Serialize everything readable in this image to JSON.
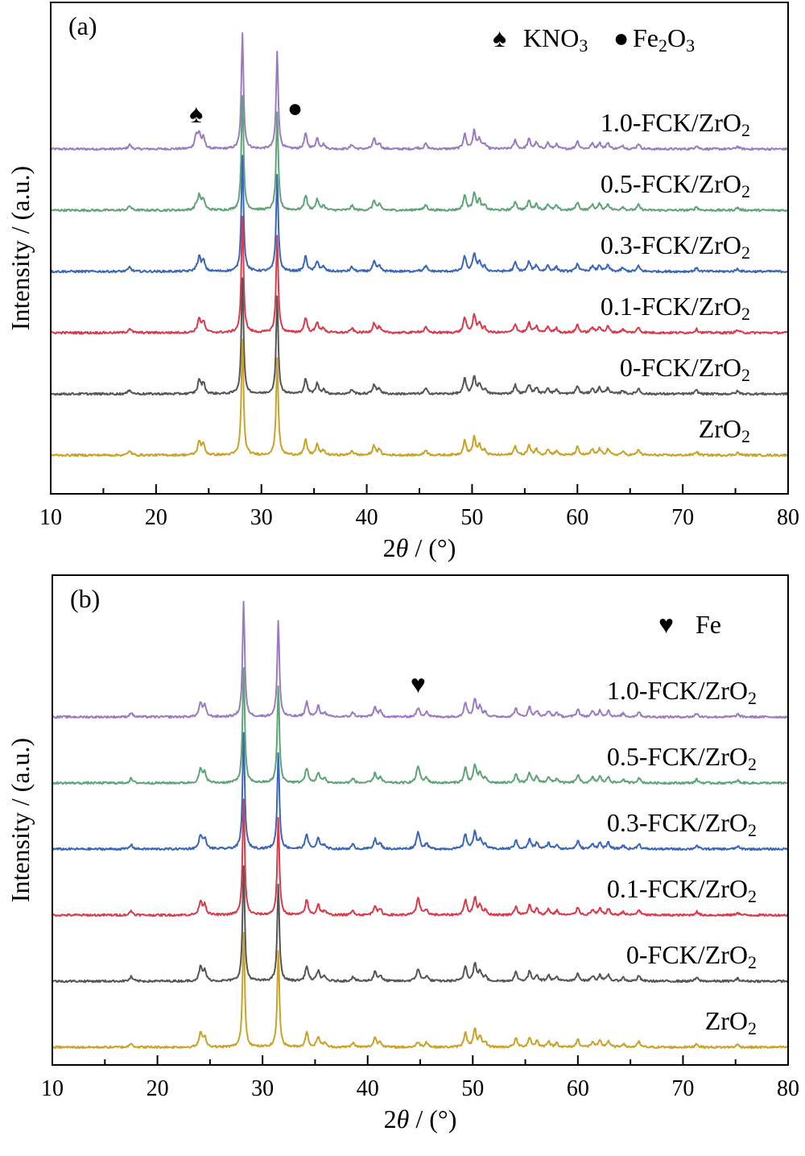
{
  "chart_data": [
    {
      "type": "line",
      "panel_label": "(a)",
      "xlabel_prefix": "2",
      "xlabel_var": "θ",
      "xlabel_suffix": " / (°)",
      "ylabel": "Intensity / (a.u.)",
      "xlim": [
        10,
        80
      ],
      "xticks": [
        10,
        20,
        30,
        40,
        50,
        60,
        70,
        80
      ],
      "grid": false,
      "legend": [
        {
          "symbol": "♠",
          "name": "KNO",
          "sub": "3",
          "position": "top-right"
        },
        {
          "symbol": "●",
          "name": "Fe",
          "sub": "2",
          "tail": "O",
          "sub2": "3",
          "position": "top-right"
        }
      ],
      "markers": [
        {
          "symbol": "♠",
          "x": 23.8,
          "series": "1.0-FCK/ZrO2"
        },
        {
          "symbol": "●",
          "x": 33.2,
          "series": "1.0-FCK/ZrO2"
        }
      ],
      "series": [
        {
          "name": "1.0-FCK/ZrO2",
          "label_main": "1.0-FCK/ZrO",
          "label_sub": "2",
          "color": "#9b7bc0",
          "offset": 5,
          "fe_peak": 0.05,
          "kno3_peak": 0.6,
          "height": 1.0
        },
        {
          "name": "0.5-FCK/ZrO2",
          "label_main": "0.5-FCK/ZrO",
          "label_sub": "2",
          "color": "#5fa477",
          "offset": 4,
          "fe_peak": 0.05,
          "kno3_peak": 0.2,
          "height": 1.0
        },
        {
          "name": "0.3-FCK/ZrO2",
          "label_main": "0.3-FCK/ZrO",
          "label_sub": "2",
          "color": "#3a66b8",
          "offset": 3,
          "fe_peak": 0.05,
          "kno3_peak": 0.1,
          "height": 1.0
        },
        {
          "name": "0.1-FCK/ZrO2",
          "label_main": "0.1-FCK/ZrO",
          "label_sub": "2",
          "color": "#d93a4a",
          "offset": 2,
          "fe_peak": 0.05,
          "kno3_peak": 0.05,
          "height": 1.0
        },
        {
          "name": "0-FCK/ZrO2",
          "label_main": "0-FCK/ZrO",
          "label_sub": "2",
          "color": "#555555",
          "offset": 1,
          "fe_peak": 0.0,
          "kno3_peak": 0.0,
          "height": 1.0
        },
        {
          "name": "ZrO2",
          "label_main": "ZrO",
          "label_sub": "2",
          "color": "#c9a227",
          "offset": 0,
          "fe_peak": 0.0,
          "kno3_peak": 0.0,
          "height": 1.0
        }
      ]
    },
    {
      "type": "line",
      "panel_label": "(b)",
      "xlabel_prefix": "2",
      "xlabel_var": "θ",
      "xlabel_suffix": " / (°)",
      "ylabel": "Intensity / (a.u.)",
      "xlim": [
        10,
        80
      ],
      "xticks": [
        10,
        20,
        30,
        40,
        50,
        60,
        70,
        80
      ],
      "grid": false,
      "legend": [
        {
          "symbol": "♥",
          "name": "Fe",
          "position": "top-right"
        }
      ],
      "markers": [
        {
          "symbol": "♥",
          "x": 44.8,
          "series": "1.0-FCK/ZrO2"
        }
      ],
      "series": [
        {
          "name": "1.0-FCK/ZrO2",
          "label_main": "1.0-FCK/ZrO",
          "label_sub": "2",
          "color": "#9b7bc0",
          "offset": 5,
          "fe_peak": 0.35,
          "kno3_peak": 0.0,
          "height": 1.0
        },
        {
          "name": "0.5-FCK/ZrO2",
          "label_main": "0.5-FCK/ZrO",
          "label_sub": "2",
          "color": "#5fa477",
          "offset": 4,
          "fe_peak": 0.7,
          "kno3_peak": 0.0,
          "height": 1.0
        },
        {
          "name": "0.3-FCK/ZrO2",
          "label_main": "0.3-FCK/ZrO",
          "label_sub": "2",
          "color": "#3a66b8",
          "offset": 3,
          "fe_peak": 0.7,
          "kno3_peak": 0.0,
          "height": 1.0
        },
        {
          "name": "0.1-FCK/ZrO2",
          "label_main": "0.1-FCK/ZrO",
          "label_sub": "2",
          "color": "#d93a4a",
          "offset": 2,
          "fe_peak": 0.7,
          "kno3_peak": 0.0,
          "height": 1.0
        },
        {
          "name": "0-FCK/ZrO2",
          "label_main": "0-FCK/ZrO",
          "label_sub": "2",
          "color": "#555555",
          "offset": 1,
          "fe_peak": 0.5,
          "kno3_peak": 0.0,
          "height": 1.0
        },
        {
          "name": "ZrO2",
          "label_main": "ZrO",
          "label_sub": "2",
          "color": "#c9a227",
          "offset": 0,
          "fe_peak": 0.2,
          "kno3_peak": 0.0,
          "height": 1.0
        }
      ]
    }
  ],
  "zro2_peaks": [
    {
      "x": 17.5,
      "h": 0.25
    },
    {
      "x": 24.1,
      "h": 0.8
    },
    {
      "x": 24.5,
      "h": 0.6
    },
    {
      "x": 28.2,
      "h": 6.5
    },
    {
      "x": 31.5,
      "h": 5.5
    },
    {
      "x": 34.2,
      "h": 0.85
    },
    {
      "x": 35.3,
      "h": 0.6
    },
    {
      "x": 35.9,
      "h": 0.25
    },
    {
      "x": 38.6,
      "h": 0.25
    },
    {
      "x": 40.7,
      "h": 0.55
    },
    {
      "x": 41.2,
      "h": 0.3
    },
    {
      "x": 45.6,
      "h": 0.3
    },
    {
      "x": 49.3,
      "h": 0.85
    },
    {
      "x": 50.2,
      "h": 1.0
    },
    {
      "x": 50.7,
      "h": 0.55
    },
    {
      "x": 51.2,
      "h": 0.25
    },
    {
      "x": 54.1,
      "h": 0.5
    },
    {
      "x": 55.4,
      "h": 0.55
    },
    {
      "x": 56.1,
      "h": 0.35
    },
    {
      "x": 57.2,
      "h": 0.35
    },
    {
      "x": 58.0,
      "h": 0.25
    },
    {
      "x": 60.0,
      "h": 0.45
    },
    {
      "x": 61.4,
      "h": 0.3
    },
    {
      "x": 62.1,
      "h": 0.35
    },
    {
      "x": 62.9,
      "h": 0.35
    },
    {
      "x": 64.3,
      "h": 0.2
    },
    {
      "x": 65.8,
      "h": 0.3
    },
    {
      "x": 71.3,
      "h": 0.2
    },
    {
      "x": 75.2,
      "h": 0.15
    }
  ]
}
